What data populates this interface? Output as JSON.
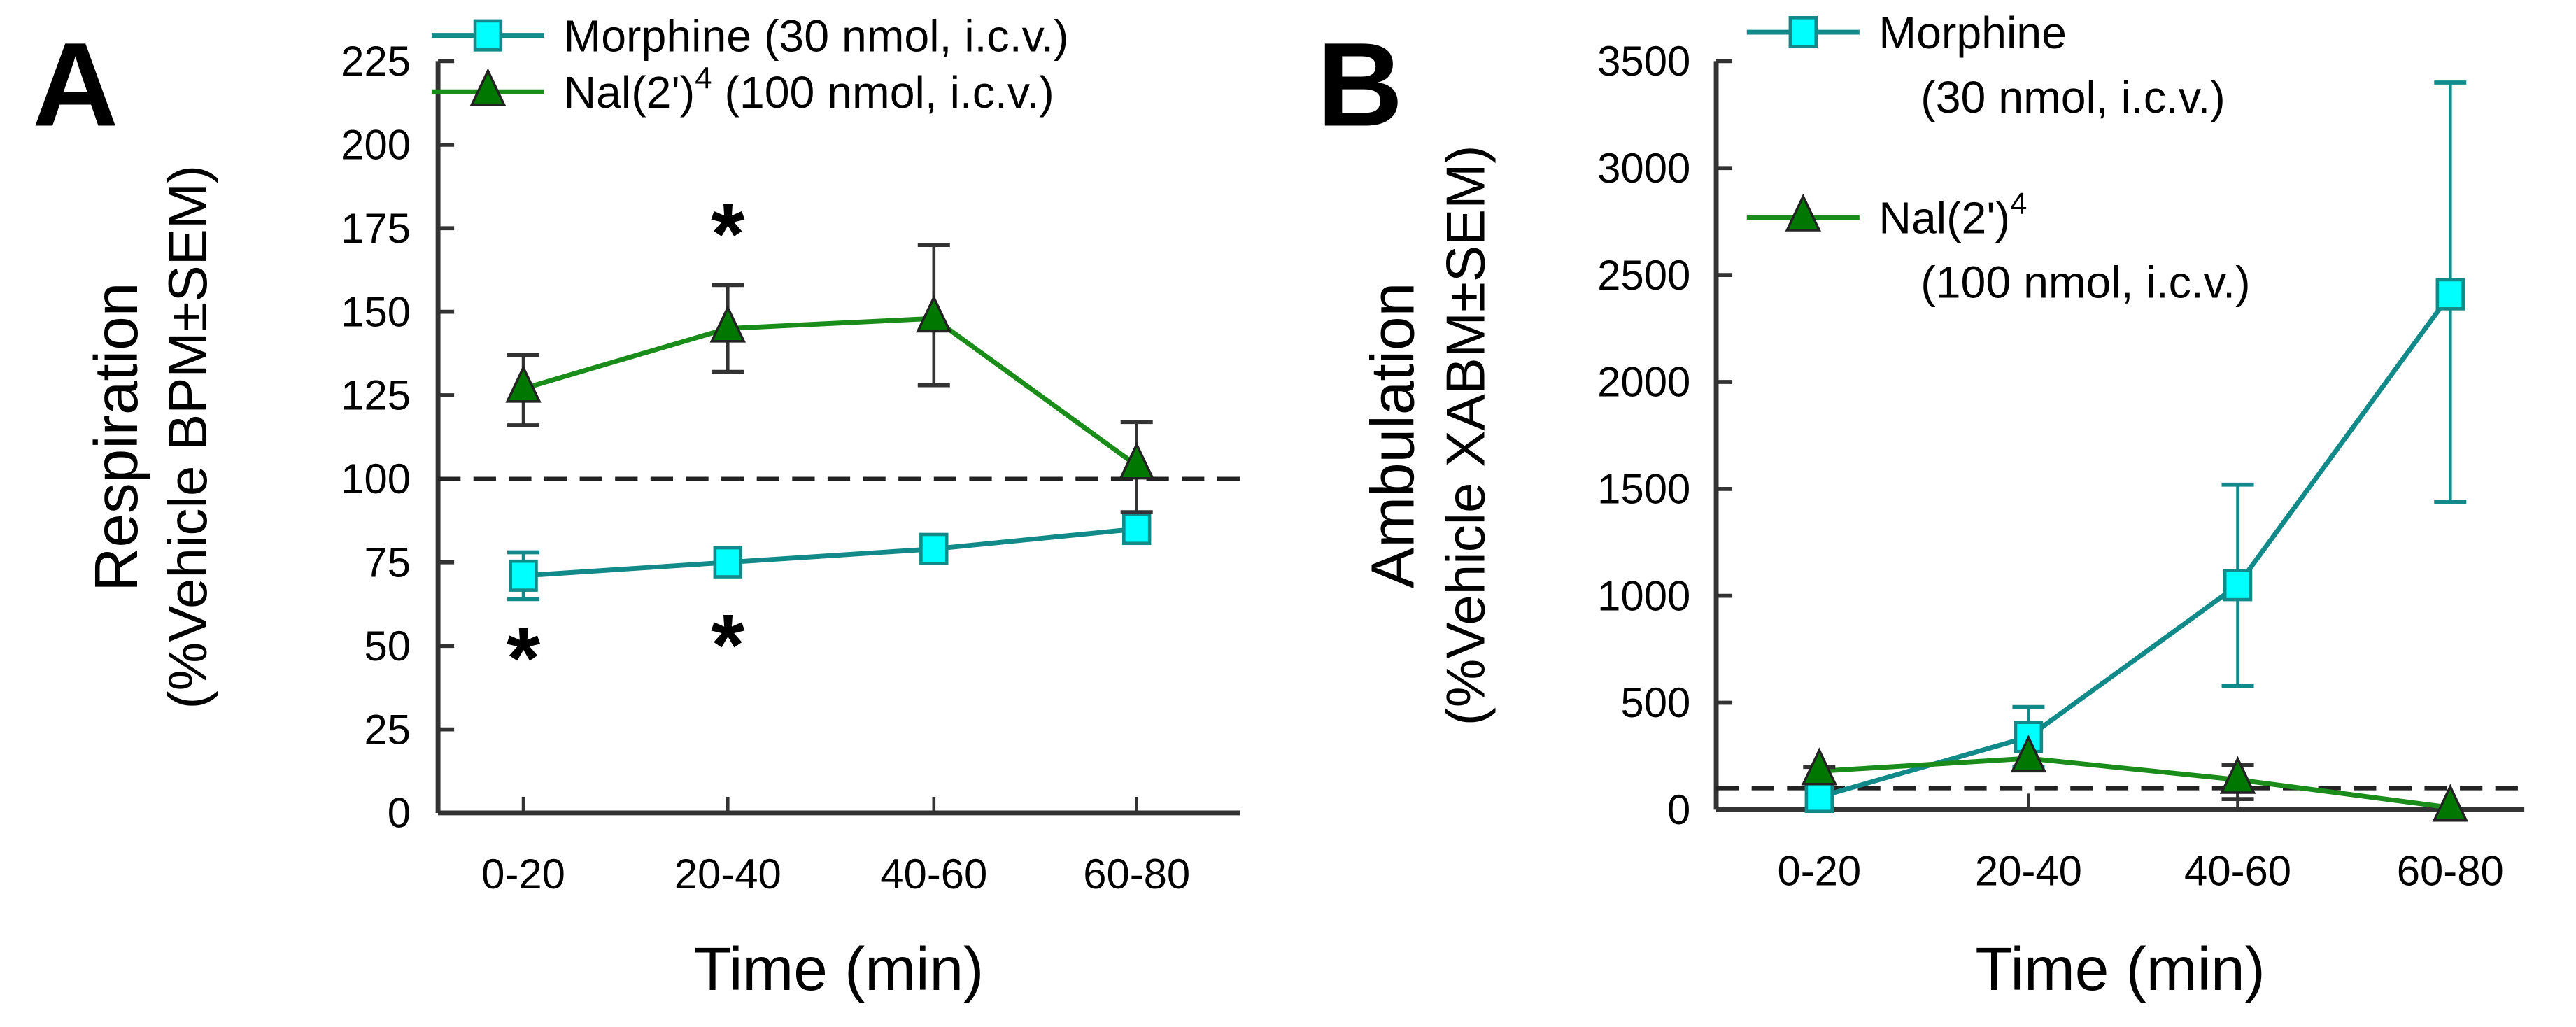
{
  "chart_data": [
    {
      "panel_label": "A",
      "type": "line",
      "xlabel": "Time (min)",
      "ylabel_line1": "Respiration",
      "ylabel_line2": "(%Vehicle BPM±SEM)",
      "categories": [
        "0-20",
        "20-40",
        "40-60",
        "60-80"
      ],
      "ylim": [
        0,
        225
      ],
      "yticks": [
        0,
        25,
        50,
        75,
        100,
        125,
        150,
        175,
        200,
        225
      ],
      "reference_line": 100,
      "legend_placement": "top",
      "legend": [
        {
          "label": "Morphine (30 nmol, i.c.v.)"
        },
        {
          "label": "Nal(2')",
          "sup": "4",
          "suffix": " (100 nmol, i.c.v.)"
        }
      ],
      "series": [
        {
          "name": "Morphine (30 nmol, i.c.v.)",
          "marker": "square",
          "color": "#138a8a",
          "fill": "#00ffff",
          "values": [
            71,
            75,
            79,
            85
          ],
          "err_low": [
            64,
            null,
            null,
            null
          ],
          "err_high": [
            78,
            null,
            null,
            null
          ]
        },
        {
          "name": "Nal(2')4 (100 nmol, i.c.v.)",
          "marker": "triangle",
          "color": "#1a8c1a",
          "fill": "#007800",
          "values": [
            127,
            145,
            148,
            104
          ],
          "err_low": [
            116,
            132,
            128,
            90
          ],
          "err_high": [
            137,
            158,
            170,
            117
          ]
        }
      ],
      "annotations": [
        {
          "text": "*",
          "category": "20-40",
          "value": 175
        },
        {
          "text": "*",
          "category": "0-20",
          "value": 48
        },
        {
          "text": "*",
          "category": "20-40",
          "value": 52
        }
      ]
    },
    {
      "panel_label": "B",
      "type": "line",
      "xlabel": "Time (min)",
      "ylabel_line1": "Ambulation",
      "ylabel_line2": "(%Vehicle XABM±SEM)",
      "categories": [
        "0-20",
        "20-40",
        "40-60",
        "60-80"
      ],
      "ylim": [
        0,
        3500
      ],
      "yticks": [
        0,
        500,
        1000,
        1500,
        2000,
        2500,
        3000,
        3500
      ],
      "reference_line": 100,
      "legend_placement": "top-left",
      "legend": [
        {
          "label": "Morphine",
          "line2": "(30 nmol, i.c.v.)"
        },
        {
          "label": "Nal(2')",
          "sup": "4",
          "line2": "(100 nmol, i.c.v.)"
        }
      ],
      "series": [
        {
          "name": "Morphine (30 nmol, i.c.v.)",
          "marker": "square",
          "color": "#138a8a",
          "fill": "#00ffff",
          "values": [
            60,
            340,
            1050,
            2410
          ],
          "err_low": [
            null,
            200,
            580,
            1440
          ],
          "err_high": [
            null,
            480,
            1520,
            3400
          ]
        },
        {
          "name": "Nal(2')4 (100 nmol, i.c.v.)",
          "marker": "triangle",
          "color": "#1a8c1a",
          "fill": "#007800",
          "values": [
            180,
            240,
            140,
            10
          ],
          "err_low": [
            null,
            null,
            50,
            null
          ],
          "err_high": [
            200,
            null,
            210,
            null
          ]
        }
      ],
      "annotations": []
    }
  ]
}
